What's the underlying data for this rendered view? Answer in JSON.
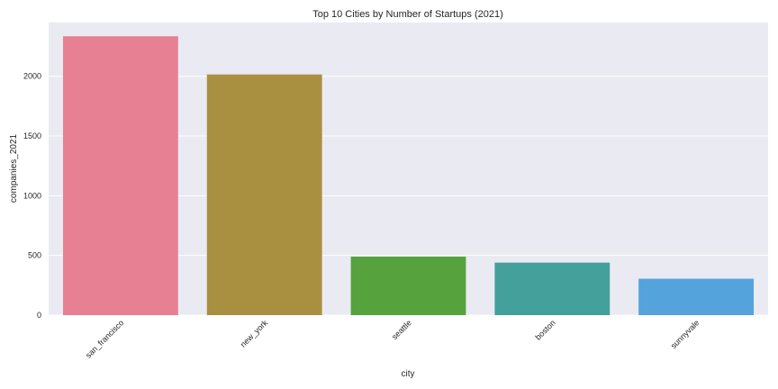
{
  "chart_data": {
    "type": "bar",
    "title": "Top 10 Cities by Number of Startups (2021)",
    "xlabel": "city",
    "ylabel": "companies_2021",
    "categories": [
      "san_francisco",
      "new_york",
      "seattle",
      "boston",
      "sunnyvale"
    ],
    "values": [
      2335,
      2015,
      490,
      440,
      305
    ],
    "colors": [
      "#e88093",
      "#a98f40",
      "#56a33e",
      "#44a09a",
      "#54a3dc"
    ],
    "ylim": [
      0,
      2450
    ],
    "yticks": [
      0,
      500,
      1000,
      1500,
      2000
    ],
    "ytick_labels": [
      "0",
      "500",
      "1000",
      "1500",
      "2000"
    ],
    "grid": true,
    "background": "#eaeaf2"
  }
}
